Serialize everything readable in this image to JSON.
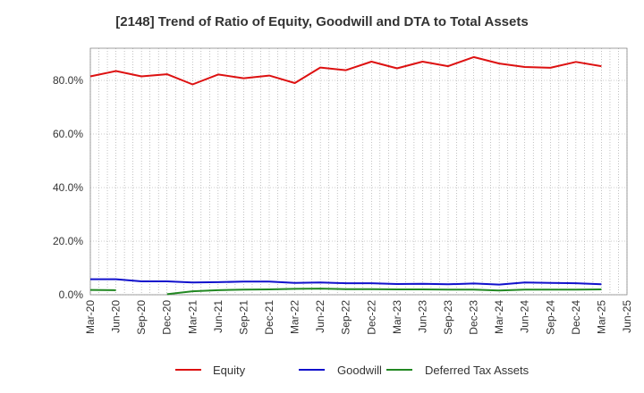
{
  "chart_data": {
    "type": "line",
    "title": "[2148]  Trend of Ratio of Equity, Goodwill and DTA to Total Assets",
    "xlabel": "",
    "ylabel": "",
    "ylim": [
      0,
      92
    ],
    "yticks": [
      0,
      20,
      40,
      60,
      80
    ],
    "ytick_labels": [
      "0.0%",
      "20.0%",
      "40.0%",
      "60.0%",
      "80.0%"
    ],
    "grid": true,
    "legend_position": "bottom",
    "x_tick_labels": [
      "Mar-20",
      "Jun-20",
      "Sep-20",
      "Dec-20",
      "Mar-21",
      "Jun-21",
      "Sep-21",
      "Dec-21",
      "Mar-22",
      "Jun-22",
      "Sep-22",
      "Dec-22",
      "Mar-23",
      "Jun-23",
      "Sep-23",
      "Dec-23",
      "Mar-24",
      "Jun-24",
      "Sep-24",
      "Dec-24",
      "Mar-25",
      "Jun-25"
    ],
    "x_dates": [
      "2020-03",
      "2020-04",
      "2020-05",
      "2020-06",
      "2020-07",
      "2020-08",
      "2020-09",
      "2020-10",
      "2020-11",
      "2020-12",
      "2021-01",
      "2021-02",
      "2021-03",
      "2021-04",
      "2021-05",
      "2021-06",
      "2021-07",
      "2021-08",
      "2021-09",
      "2021-10",
      "2021-11",
      "2021-12",
      "2022-01",
      "2022-02",
      "2022-03",
      "2022-04",
      "2022-05",
      "2022-06",
      "2022-07",
      "2022-08",
      "2022-09",
      "2022-10",
      "2022-11",
      "2022-12",
      "2023-01",
      "2023-02",
      "2023-03",
      "2023-04",
      "2023-05",
      "2023-06",
      "2023-07",
      "2023-08",
      "2023-09",
      "2023-10",
      "2023-11",
      "2023-12",
      "2024-01",
      "2024-02",
      "2024-03",
      "2024-04",
      "2024-05",
      "2024-06",
      "2024-07",
      "2024-08",
      "2024-09",
      "2024-10",
      "2024-11",
      "2024-12",
      "2025-01",
      "2025-02",
      "2025-03",
      "2025-04",
      "2025-05",
      "2025-06"
    ],
    "series": [
      {
        "name": "Equity",
        "color": "#dd1111",
        "points": [
          [
            "2020-03",
            81.5
          ],
          [
            "2020-06",
            83.5
          ],
          [
            "2020-09",
            81.5
          ],
          [
            "2020-12",
            82.3
          ],
          [
            "2021-03",
            78.5
          ],
          [
            "2021-06",
            82.2
          ],
          [
            "2021-09",
            80.8
          ],
          [
            "2021-12",
            81.8
          ],
          [
            "2022-03",
            79.0
          ],
          [
            "2022-06",
            84.8
          ],
          [
            "2022-09",
            83.8
          ],
          [
            "2022-12",
            87.0
          ],
          [
            "2023-03",
            84.5
          ],
          [
            "2023-06",
            87.0
          ],
          [
            "2023-09",
            85.3
          ],
          [
            "2023-12",
            88.7
          ],
          [
            "2024-03",
            86.3
          ],
          [
            "2024-06",
            85.0
          ],
          [
            "2024-09",
            84.7
          ],
          [
            "2024-12",
            86.9
          ],
          [
            "2025-03",
            85.3
          ]
        ]
      },
      {
        "name": "Goodwill",
        "color": "#1111cc",
        "points": [
          [
            "2020-03",
            5.8
          ],
          [
            "2020-06",
            5.8
          ],
          [
            "2020-09",
            5.0
          ],
          [
            "2020-12",
            5.0
          ],
          [
            "2021-03",
            4.6
          ],
          [
            "2021-06",
            4.7
          ],
          [
            "2021-09",
            4.9
          ],
          [
            "2021-12",
            4.9
          ],
          [
            "2022-03",
            4.4
          ],
          [
            "2022-06",
            4.6
          ],
          [
            "2022-09",
            4.3
          ],
          [
            "2022-12",
            4.3
          ],
          [
            "2023-03",
            4.0
          ],
          [
            "2023-06",
            4.1
          ],
          [
            "2023-09",
            3.9
          ],
          [
            "2023-12",
            4.2
          ],
          [
            "2024-03",
            3.8
          ],
          [
            "2024-06",
            4.6
          ],
          [
            "2024-09",
            4.4
          ],
          [
            "2024-12",
            4.3
          ],
          [
            "2025-03",
            3.9
          ]
        ]
      },
      {
        "name": "Deferred Tax Assets",
        "color": "#228822",
        "segments": [
          [
            [
              "2020-03",
              1.8
            ],
            [
              "2020-06",
              1.7
            ]
          ],
          [
            [
              "2020-12",
              0.2
            ],
            [
              "2021-03",
              1.3
            ],
            [
              "2021-06",
              1.7
            ],
            [
              "2021-09",
              1.9
            ],
            [
              "2021-12",
              2.0
            ],
            [
              "2022-03",
              2.2
            ],
            [
              "2022-06",
              2.3
            ],
            [
              "2022-09",
              2.1
            ],
            [
              "2022-12",
              2.1
            ],
            [
              "2023-03",
              2.0
            ],
            [
              "2023-06",
              2.0
            ],
            [
              "2023-09",
              1.9
            ],
            [
              "2023-12",
              1.9
            ],
            [
              "2024-03",
              1.6
            ],
            [
              "2024-06",
              1.9
            ],
            [
              "2024-09",
              1.9
            ],
            [
              "2024-12",
              1.9
            ],
            [
              "2025-03",
              2.0
            ]
          ]
        ]
      }
    ]
  }
}
